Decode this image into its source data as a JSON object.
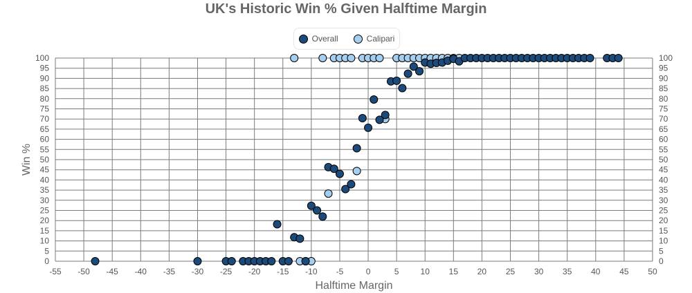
{
  "chart_data": {
    "type": "scatter",
    "title": "UK's Historic Win % Given Halftime Margin",
    "xlabel": "Halftime Margin",
    "ylabel": "Win %",
    "xlim": [
      -55,
      50
    ],
    "ylim": [
      0,
      100
    ],
    "x_ticks": [
      "-55",
      "-50",
      "-45",
      "-40",
      "-35",
      "-30",
      "-25",
      "-20",
      "-15",
      "-10",
      "-5",
      "0",
      "5",
      "10",
      "15",
      "20",
      "25",
      "30",
      "35",
      "40",
      "45",
      "50"
    ],
    "y_ticks": [
      "0",
      "5",
      "10",
      "15",
      "20",
      "25",
      "30",
      "35",
      "40",
      "45",
      "50",
      "55",
      "60",
      "65",
      "70",
      "75",
      "80",
      "85",
      "90",
      "95",
      "100"
    ],
    "grid": true,
    "legend_position": "top-center",
    "series": [
      {
        "name": "Calipari",
        "color": "#a6cfef",
        "points": [
          [
            -13,
            100
          ],
          [
            -8,
            100
          ],
          [
            -6,
            100
          ],
          [
            -5,
            100
          ],
          [
            -4,
            100
          ],
          [
            -3,
            100
          ],
          [
            -1,
            100
          ],
          [
            0,
            100
          ],
          [
            1,
            100
          ],
          [
            2,
            100
          ],
          [
            5,
            100
          ],
          [
            6,
            100
          ],
          [
            7,
            100
          ],
          [
            8,
            100
          ],
          [
            9,
            100
          ],
          [
            10,
            100
          ],
          [
            11,
            100
          ],
          [
            12,
            100
          ],
          [
            13,
            100
          ],
          [
            14,
            100
          ],
          [
            15,
            100
          ],
          [
            16,
            100
          ],
          [
            -12,
            0
          ],
          [
            -11,
            0
          ],
          [
            -10,
            0
          ],
          [
            -7,
            33.3
          ],
          [
            -2,
            44.4
          ],
          [
            3,
            70
          ]
        ]
      },
      {
        "name": "Overall",
        "color": "#1c4a7a",
        "points": [
          [
            -48,
            0
          ],
          [
            -30,
            0
          ],
          [
            -25,
            0
          ],
          [
            -24,
            0
          ],
          [
            -22,
            0
          ],
          [
            -21,
            0
          ],
          [
            -20,
            0
          ],
          [
            -19,
            0
          ],
          [
            -18,
            0
          ],
          [
            -17,
            0
          ],
          [
            -15,
            0
          ],
          [
            -14,
            0
          ],
          [
            -11,
            0
          ],
          [
            -16,
            18.2
          ],
          [
            -13,
            11.8
          ],
          [
            -12,
            11.1
          ],
          [
            -10,
            27.3
          ],
          [
            -9,
            25
          ],
          [
            -8,
            22
          ],
          [
            -7,
            46.3
          ],
          [
            -6,
            45.5
          ],
          [
            -5,
            43
          ],
          [
            -4,
            35.5
          ],
          [
            -3,
            37.9
          ],
          [
            -2,
            55.6
          ],
          [
            -1,
            70.4
          ],
          [
            0,
            65.7
          ],
          [
            1,
            79.6
          ],
          [
            2,
            69.6
          ],
          [
            3,
            72
          ],
          [
            4,
            88.5
          ],
          [
            5,
            88.8
          ],
          [
            6,
            85.2
          ],
          [
            7,
            92.3
          ],
          [
            8,
            95.8
          ],
          [
            9,
            93.5
          ],
          [
            10,
            97.8
          ],
          [
            11,
            97.2
          ],
          [
            12,
            97.6
          ],
          [
            13,
            97.8
          ],
          [
            14,
            98.7
          ],
          [
            15,
            99.6
          ],
          [
            16,
            98.4
          ],
          [
            17,
            100
          ],
          [
            18,
            100
          ],
          [
            19,
            100
          ],
          [
            20,
            100
          ],
          [
            21,
            100
          ],
          [
            22,
            100
          ],
          [
            23,
            100
          ],
          [
            24,
            100
          ],
          [
            25,
            100
          ],
          [
            26,
            100
          ],
          [
            27,
            100
          ],
          [
            28,
            100
          ],
          [
            29,
            100
          ],
          [
            30,
            100
          ],
          [
            31,
            100
          ],
          [
            32,
            100
          ],
          [
            33,
            100
          ],
          [
            34,
            100
          ],
          [
            35,
            100
          ],
          [
            36,
            100
          ],
          [
            37,
            100
          ],
          [
            38,
            100
          ],
          [
            39,
            100
          ],
          [
            42,
            100
          ],
          [
            43,
            100
          ],
          [
            44,
            100
          ]
        ]
      }
    ],
    "legend": [
      {
        "name": "Overall",
        "color": "#1c4a7a"
      },
      {
        "name": "Calipari",
        "color": "#a6cfef"
      }
    ]
  }
}
